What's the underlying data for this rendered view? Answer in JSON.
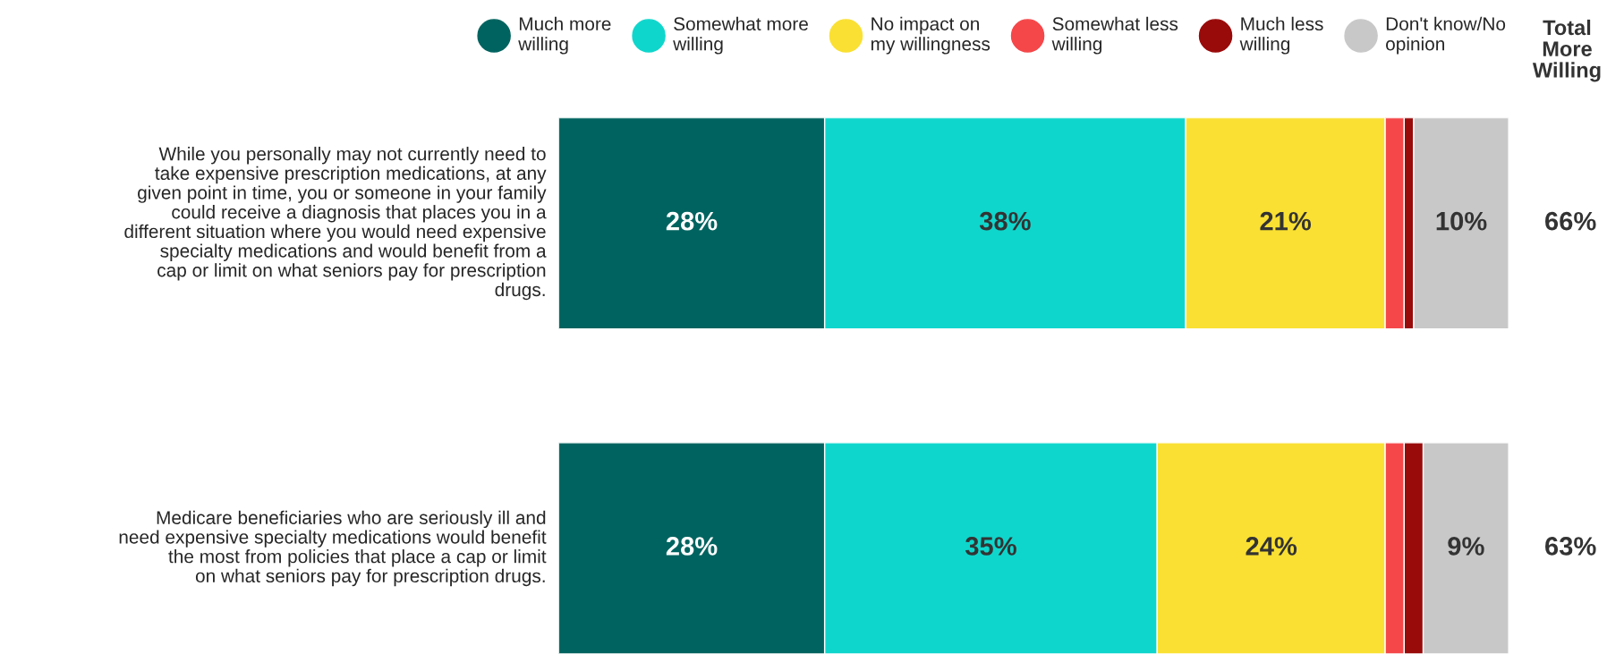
{
  "chart_data": {
    "type": "bar",
    "orientation": "horizontal",
    "stacked": true,
    "categories": [
      "While you personally may not currently need to\ntake expensive prescription medications, at any\ngiven point in time, you or someone in your family\ncould receive a diagnosis that places you in a\ndifferent situation where you would need expensive\nspecialty medications and would benefit from a\ncap or limit on what seniors pay for prescription\ndrugs.",
      "Medicare beneficiaries who are seriously ill and\nneed expensive specialty medications would benefit\nthe most from policies that place a cap or limit\non what seniors pay for prescription drugs."
    ],
    "series": [
      {
        "name": "Much more\nwilling",
        "color": "#00635f",
        "values": [
          28,
          28
        ],
        "value_labels": [
          "28%",
          "28%"
        ]
      },
      {
        "name": "Somewhat more\nwilling",
        "color": "#0fd6cc",
        "values": [
          38,
          35
        ],
        "value_labels": [
          "38%",
          "35%"
        ]
      },
      {
        "name": "No impact on\nmy willingness",
        "color": "#fae032",
        "values": [
          21,
          24
        ],
        "value_labels": [
          "21%",
          "24%"
        ]
      },
      {
        "name": "Somewhat less\nwilling",
        "color": "#f5474a",
        "values": [
          2,
          2
        ],
        "value_labels": [
          null,
          null
        ]
      },
      {
        "name": "Much less\nwilling",
        "color": "#990a0a",
        "values": [
          1,
          2
        ],
        "value_labels": [
          null,
          null
        ]
      },
      {
        "name": "Don't know/No\nopinion",
        "color": "#c8c8c8",
        "values": [
          10,
          9
        ],
        "value_labels": [
          "10%",
          "9%"
        ]
      }
    ],
    "xlim": [
      0,
      100
    ],
    "tick_labels": false,
    "grid": false,
    "legend": "top",
    "annotations": [
      "Total\nMore\nWilling",
      "66%",
      "63%"
    ]
  }
}
